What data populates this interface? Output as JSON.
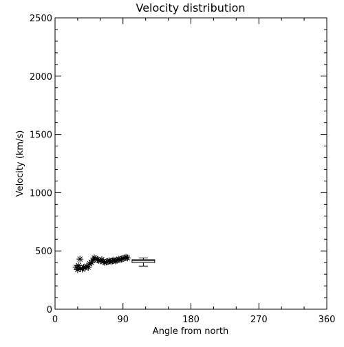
{
  "chart_data": {
    "type": "scatter",
    "title": "Velocity distribution",
    "xlabel": "Angle from north",
    "ylabel": "Velocity (km/s)",
    "xlim": [
      0,
      360
    ],
    "ylim": [
      0,
      2500
    ],
    "xticks": [
      0,
      90,
      180,
      270,
      360
    ],
    "yticks": [
      0,
      500,
      1000,
      1500,
      2000,
      2500
    ],
    "grid": false,
    "marker": "asterisk",
    "color": "#000000",
    "series": [
      {
        "points": [
          [
            28,
            360
          ],
          [
            30,
            340
          ],
          [
            31,
            375
          ],
          [
            33,
            430
          ],
          [
            34,
            350
          ],
          [
            36,
            345
          ],
          [
            38,
            360
          ],
          [
            40,
            355
          ],
          [
            42,
            370
          ],
          [
            44,
            360
          ],
          [
            46,
            390
          ],
          [
            48,
            400
          ],
          [
            50,
            420
          ],
          [
            52,
            440
          ],
          [
            54,
            435
          ],
          [
            56,
            425
          ],
          [
            58,
            420
          ],
          [
            60,
            415
          ],
          [
            62,
            425
          ],
          [
            64,
            410
          ],
          [
            66,
            400
          ],
          [
            68,
            405
          ],
          [
            70,
            410
          ],
          [
            72,
            415
          ],
          [
            74,
            410
          ],
          [
            76,
            415
          ],
          [
            78,
            420
          ],
          [
            80,
            415
          ],
          [
            82,
            420
          ],
          [
            84,
            430
          ],
          [
            86,
            425
          ],
          [
            88,
            430
          ],
          [
            90,
            435
          ],
          [
            92,
            440
          ],
          [
            94,
            445
          ],
          [
            96,
            440
          ]
        ]
      }
    ],
    "boxplot": {
      "x_range": [
        102,
        132
      ],
      "whisker_low": 370,
      "q1": 400,
      "median": 415,
      "q3": 425,
      "whisker_high": 440
    }
  }
}
